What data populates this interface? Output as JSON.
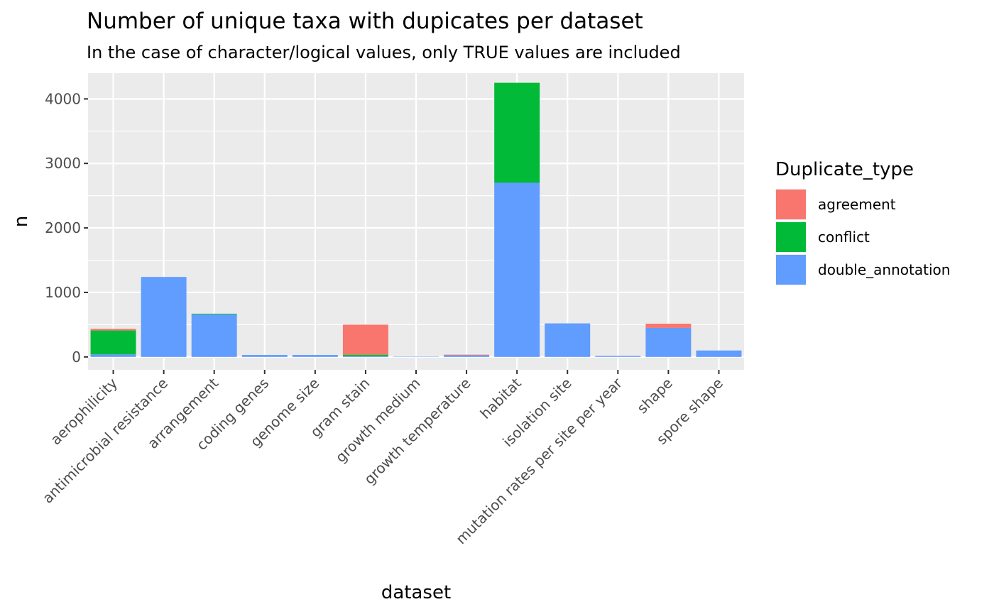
{
  "chart_data": {
    "type": "bar",
    "stacked": true,
    "title": "Number of unique taxa with dupicates per dataset",
    "subtitle": "In the case of character/logical values, only TRUE values are included",
    "xlabel": "dataset",
    "ylabel": "n",
    "ylim": [
      -200,
      4400
    ],
    "yticks": [
      0,
      1000,
      2000,
      3000,
      4000
    ],
    "grid": true,
    "legend": {
      "title": "Duplicate_type",
      "position": "right"
    },
    "categories": [
      "aerophilicity",
      "antimicrobial resistance",
      "arrangement",
      "coding genes",
      "genome size",
      "gram stain",
      "growth medium",
      "growth temperature",
      "habitat",
      "isolation site",
      "mutation rates per site per year",
      "shape",
      "spore shape"
    ],
    "series": [
      {
        "name": "double_annotation",
        "color": "#619CFF",
        "values": [
          40,
          1240,
          660,
          30,
          30,
          10,
          5,
          25,
          2700,
          520,
          15,
          450,
          100
        ]
      },
      {
        "name": "conflict",
        "color": "#00BA38",
        "values": [
          370,
          0,
          10,
          0,
          0,
          25,
          0,
          0,
          1550,
          0,
          0,
          0,
          0
        ]
      },
      {
        "name": "agreement",
        "color": "#F8766D",
        "values": [
          25,
          0,
          0,
          0,
          0,
          465,
          0,
          10,
          0,
          0,
          0,
          65,
          0
        ]
      }
    ],
    "legend_order": [
      "agreement",
      "conflict",
      "double_annotation"
    ]
  }
}
